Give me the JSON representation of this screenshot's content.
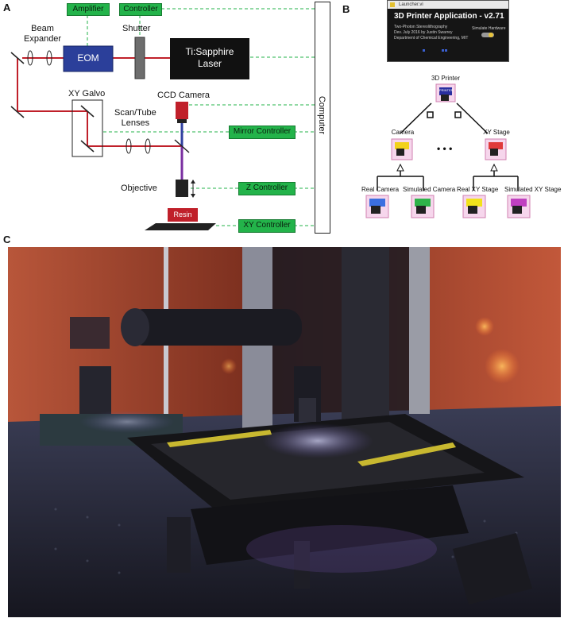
{
  "panel_a": {
    "letter": "A",
    "labels": {
      "amplifier": "Amplifier",
      "controller": "Controller",
      "beam_expander": "Beam\nExpander",
      "shutter": "Shutter",
      "eom": "EOM",
      "laser": "Ti:Sapphire\nLaser",
      "xy_galvo": "XY Galvo",
      "ccd_camera": "CCD Camera",
      "scan_tube_lenses": "Scan/Tube\nLenses",
      "mirror_controller": "Mirror Controller",
      "objective": "Objective",
      "z_controller": "Z Controller",
      "resin": "Resin",
      "xy_controller": "XY Controller",
      "computer": "Computer"
    },
    "colors": {
      "beam": "#c0202a",
      "eom": "#2b3f9a",
      "laser": "#111111",
      "controller_box": "#23b34a",
      "resin": "#c0202a",
      "signal_line": "#23b34a"
    }
  },
  "panel_b": {
    "letter": "B",
    "launcher": {
      "window_title": "Launcher.vi",
      "app_title": "3D Printer Application - v2.71",
      "line1": "Two-Photon Stereolithography",
      "line2": "Dev. July 2016 by Justin Swarrey",
      "line3": "Department of Chemical Engineering, MIT",
      "toggle_label": "Simulate Hardware"
    },
    "tree": {
      "root": "3D Printer",
      "root_badge": "PRINTER",
      "children": [
        "Camera",
        "XY Stage"
      ],
      "ellipsis": "• • •",
      "camera_children": [
        "Real Camera",
        "Simulated Camera"
      ],
      "stage_children": [
        "Real XY Stage",
        "Simulated XY Stage"
      ]
    },
    "colors": {
      "cube_frame": "#e0a0c8",
      "camera": "#f2d21b",
      "stage": "#e03a3a",
      "real_camera": "#3b6fe0",
      "sim_camera": "#2fb34a",
      "real_stage": "#f2e21b",
      "sim_stage": "#c040c0"
    }
  },
  "panel_c": {
    "letter": "C"
  }
}
